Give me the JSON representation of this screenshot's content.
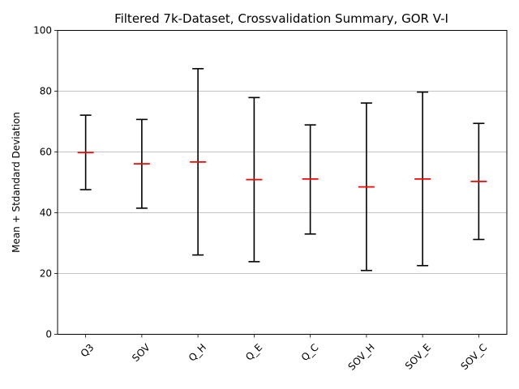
{
  "chart_data": {
    "type": "errorbar",
    "title": "Filtered 7k-Dataset, Crossvalidation Summary, GOR V-I",
    "xlabel": "",
    "ylabel": "Mean + Stdandard Deviation",
    "ylim": [
      0,
      100
    ],
    "yticks": [
      0,
      20,
      40,
      60,
      80,
      100
    ],
    "grid": "horizontal",
    "categories": [
      "Q3",
      "SOV",
      "Q_H",
      "Q_E",
      "Q_C",
      "SOV_H",
      "SOV_E",
      "SOV_C"
    ],
    "series": [
      {
        "mean": [
          59.8,
          56.1,
          56.7,
          50.9,
          51.1,
          48.5,
          51.1,
          50.3
        ],
        "lower": [
          47.6,
          41.5,
          26.1,
          23.9,
          33.0,
          21.0,
          22.6,
          31.2
        ],
        "upper": [
          72.1,
          70.7,
          87.4,
          77.9,
          68.9,
          76.1,
          79.7,
          69.4
        ]
      }
    ],
    "colors": {
      "mean": "#ff0000",
      "errorbar": "#000000",
      "grid": "#b0b0b0"
    }
  }
}
